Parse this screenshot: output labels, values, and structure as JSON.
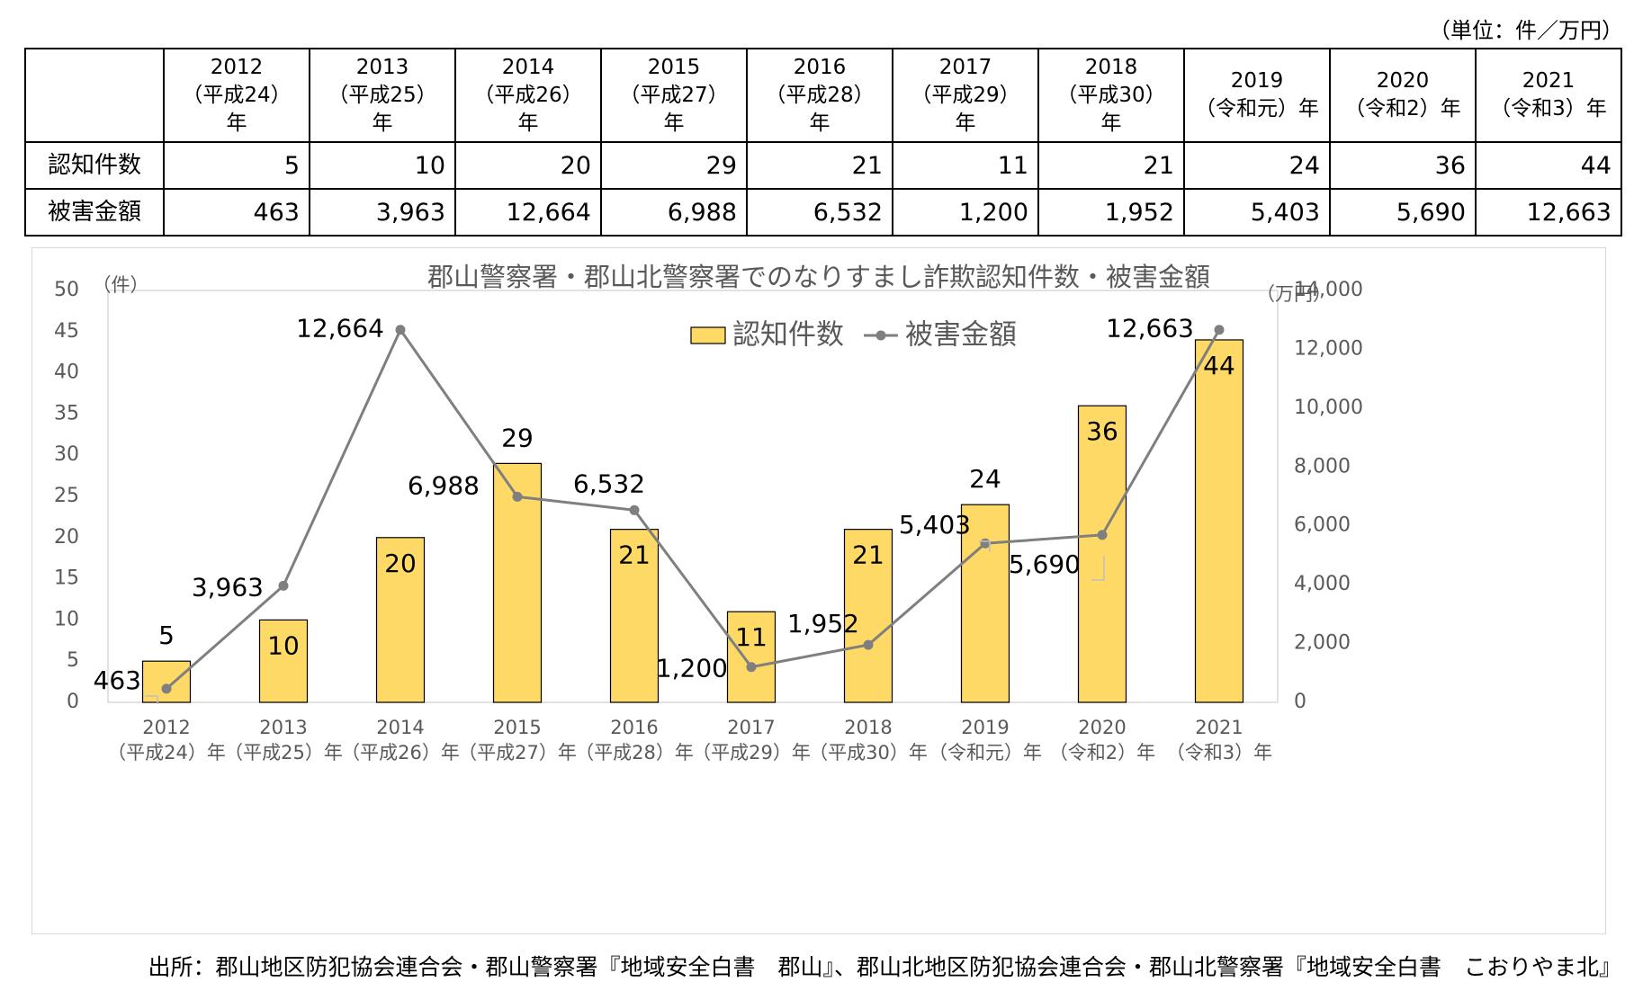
{
  "unit_note": "（単位：件／万円）",
  "table": {
    "years": [
      {
        "year": "2012",
        "era": "（平成24）年"
      },
      {
        "year": "2013",
        "era": "（平成25）年"
      },
      {
        "year": "2014",
        "era": "（平成26）年"
      },
      {
        "year": "2015",
        "era": "（平成27）年"
      },
      {
        "year": "2016",
        "era": "（平成28）年"
      },
      {
        "year": "2017",
        "era": "（平成29）年"
      },
      {
        "year": "2018",
        "era": "（平成30）年"
      },
      {
        "year": "2019",
        "era": "（令和元）年"
      },
      {
        "year": "2020",
        "era": "（令和2）年"
      },
      {
        "year": "2021",
        "era": "（令和3）年"
      }
    ],
    "rows": [
      {
        "label": "認知件数",
        "values": [
          "5",
          "10",
          "20",
          "29",
          "21",
          "11",
          "21",
          "24",
          "36",
          "44"
        ]
      },
      {
        "label": "被害金額",
        "values": [
          "463",
          "3,963",
          "12,664",
          "6,988",
          "6,532",
          "1,200",
          "1,952",
          "5,403",
          "5,690",
          "12,663"
        ]
      }
    ]
  },
  "chart_data": {
    "type": "bar",
    "title": "郡山警察署・郡山北警察署でのなりすまし詐欺認知件数・被害金額",
    "categories": [
      "2012",
      "2013",
      "2014",
      "2015",
      "2016",
      "2017",
      "2018",
      "2019",
      "2020",
      "2021"
    ],
    "category_sublabels": [
      "（平成24）年",
      "（平成25）年",
      "（平成26）年",
      "（平成27）年",
      "（平成28）年",
      "（平成29）年",
      "（平成30）年",
      "（令和元）年",
      "（令和2）年",
      "（令和3）年"
    ],
    "ylabel_left": "（件）",
    "ylabel_right": "（万円）",
    "ylim_left": [
      0,
      50
    ],
    "yticks_left": [
      "0",
      "5",
      "10",
      "15",
      "20",
      "25",
      "30",
      "35",
      "40",
      "45",
      "50"
    ],
    "ylim_right": [
      0,
      14000
    ],
    "yticks_right": [
      "0",
      "2,000",
      "4,000",
      "6,000",
      "8,000",
      "10,000",
      "12,000",
      "14,000"
    ],
    "legend_position": "top-right",
    "grid": false,
    "series": [
      {
        "name": "認知件数",
        "type": "bar",
        "axis": "left",
        "color": "#FFD966",
        "edge_color": "#000000",
        "values": [
          5,
          10,
          20,
          29,
          21,
          11,
          21,
          24,
          36,
          44
        ],
        "labels": [
          "5",
          "10",
          "20",
          "29",
          "21",
          "11",
          "21",
          "24",
          "36",
          "44"
        ]
      },
      {
        "name": "被害金額",
        "type": "line",
        "axis": "right",
        "color": "#7F7F7F",
        "values": [
          463,
          3963,
          12664,
          6988,
          6532,
          1200,
          1952,
          5403,
          5690,
          12663
        ],
        "labels": [
          "463",
          "3,963",
          "12,664",
          "6,988",
          "6,532",
          "1,200",
          "1,952",
          "5,403",
          "5,690",
          "12,663"
        ]
      }
    ]
  },
  "source": "出所：郡山地区防犯協会連合会・郡山警察署『地域安全白書　郡山』、郡山北地区防犯協会連合会・郡山北警察署『地域安全白書　こおりやま北』"
}
